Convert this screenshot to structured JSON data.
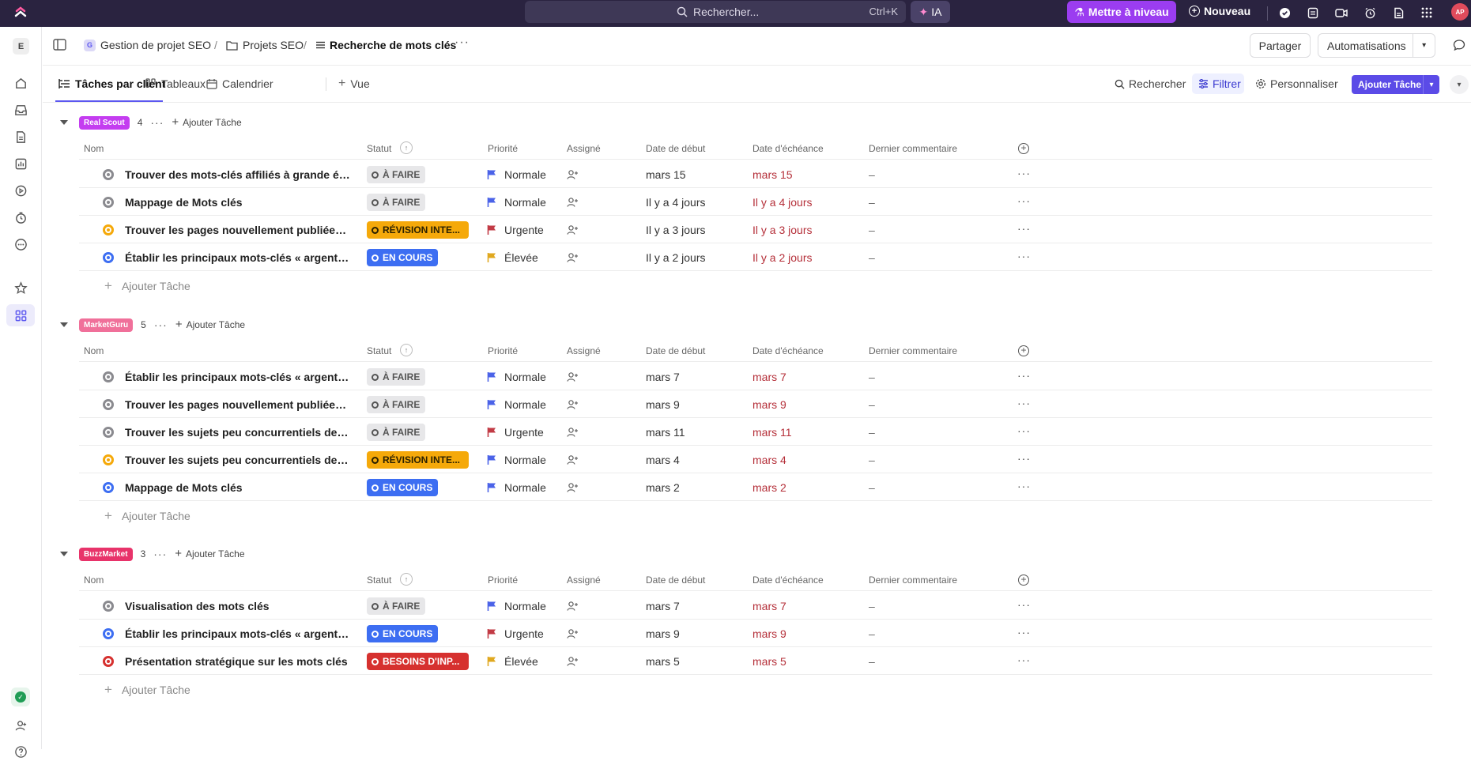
{
  "topbar": {
    "search_placeholder": "Rechercher...",
    "search_shortcut": "Ctrl+K",
    "ai_label": "IA",
    "upgrade_label": "Mettre à niveau",
    "new_label": "Nouveau",
    "avatar_initials": "AP"
  },
  "sidebar": {
    "workspace_initial": "E"
  },
  "breadcrumb": {
    "space_initial": "G",
    "space": "Gestion de projet SEO",
    "folder": "Projets SEO",
    "list": "Recherche de mots clés"
  },
  "header": {
    "share_label": "Partager",
    "automations_label": "Automatisations"
  },
  "views": {
    "tabs": [
      "Tâches par client",
      "Tableaux",
      "Calendrier"
    ],
    "add_view": "Vue",
    "search": "Rechercher",
    "filter": "Filtrer",
    "customize": "Personnaliser",
    "add_task": "Ajouter Tâche"
  },
  "columns": {
    "name": "Nom",
    "status": "Statut",
    "priority": "Priorité",
    "assignee": "Assigné",
    "start": "Date de début",
    "due": "Date d'échéance",
    "comment": "Dernier commentaire"
  },
  "add_task_label": "Ajouter Tâche",
  "groups": [
    {
      "name": "Real Scout",
      "color": "#c43df0",
      "count": "4",
      "tasks": [
        {
          "name": "Trouver des mots-clés affiliés à grande éch...",
          "status": "À FAIRE",
          "status_type": "todo",
          "priority": "Normale",
          "start": "mars 15",
          "due": "mars 15",
          "comment": "–"
        },
        {
          "name": "Mappage de Mots clés",
          "status": "À FAIRE",
          "status_type": "todo",
          "priority": "Normale",
          "start": "Il y a 4 jours",
          "due": "Il y a 4 jours",
          "comment": "–"
        },
        {
          "name": "Trouver les pages nouvellement publiées a...",
          "status": "RÉVISION INTE...",
          "status_type": "rev",
          "priority": "Urgente",
          "start": "Il y a 3 jours",
          "due": "Il y a 3 jours",
          "comment": "–"
        },
        {
          "name": "Établir les principaux mots-clés « argent » ...",
          "status": "EN COURS",
          "status_type": "enc",
          "priority": "Élevée",
          "start": "Il y a 2 jours",
          "due": "Il y a 2 jours",
          "comment": "–"
        }
      ]
    },
    {
      "name": "MarketGuru",
      "color": "#f0709a",
      "count": "5",
      "tasks": [
        {
          "name": "Établir les principaux mots-clés « argent » ...",
          "status": "À FAIRE",
          "status_type": "todo",
          "priority": "Normale",
          "start": "mars 7",
          "due": "mars 7",
          "comment": "–"
        },
        {
          "name": "Trouver les pages nouvellement publiées a...",
          "status": "À FAIRE",
          "status_type": "todo",
          "priority": "Normale",
          "start": "mars 9",
          "due": "mars 9",
          "comment": "–"
        },
        {
          "name": "Trouver les sujets peu concurrentiels des c...",
          "status": "À FAIRE",
          "status_type": "todo",
          "priority": "Urgente",
          "start": "mars 11",
          "due": "mars 11",
          "comment": "–"
        },
        {
          "name": "Trouver les sujets peu concurrentiels des c...",
          "status": "RÉVISION INTE...",
          "status_type": "rev",
          "priority": "Normale",
          "start": "mars 4",
          "due": "mars 4",
          "comment": "–"
        },
        {
          "name": "Mappage de Mots clés",
          "status": "EN COURS",
          "status_type": "enc",
          "priority": "Normale",
          "start": "mars 2",
          "due": "mars 2",
          "comment": "–"
        }
      ]
    },
    {
      "name": "BuzzMarket",
      "color": "#e8336a",
      "count": "3",
      "tasks": [
        {
          "name": "Visualisation des mots clés",
          "status": "À FAIRE",
          "status_type": "todo",
          "priority": "Normale",
          "start": "mars 7",
          "due": "mars 7",
          "comment": "–"
        },
        {
          "name": "Établir les principaux mots-clés « argent » ...",
          "status": "EN COURS",
          "status_type": "enc",
          "priority": "Urgente",
          "start": "mars 9",
          "due": "mars 9",
          "comment": "–"
        },
        {
          "name": "Présentation stratégique sur les mots clés",
          "status": "BESOINS D'INP...",
          "status_type": "bes",
          "priority": "Élevée",
          "start": "mars 5",
          "due": "mars 5",
          "comment": "–"
        }
      ]
    }
  ],
  "colors": {
    "status_todo": "#8a8a8f",
    "status_rev": "#f5a90a",
    "status_enc": "#3d6ef2",
    "status_bes": "#d6312f",
    "flag_normale": "#4b63e8",
    "flag_urgente": "#c23b45",
    "flag_elevee": "#e0a81f",
    "accent": "#5b4be7"
  }
}
